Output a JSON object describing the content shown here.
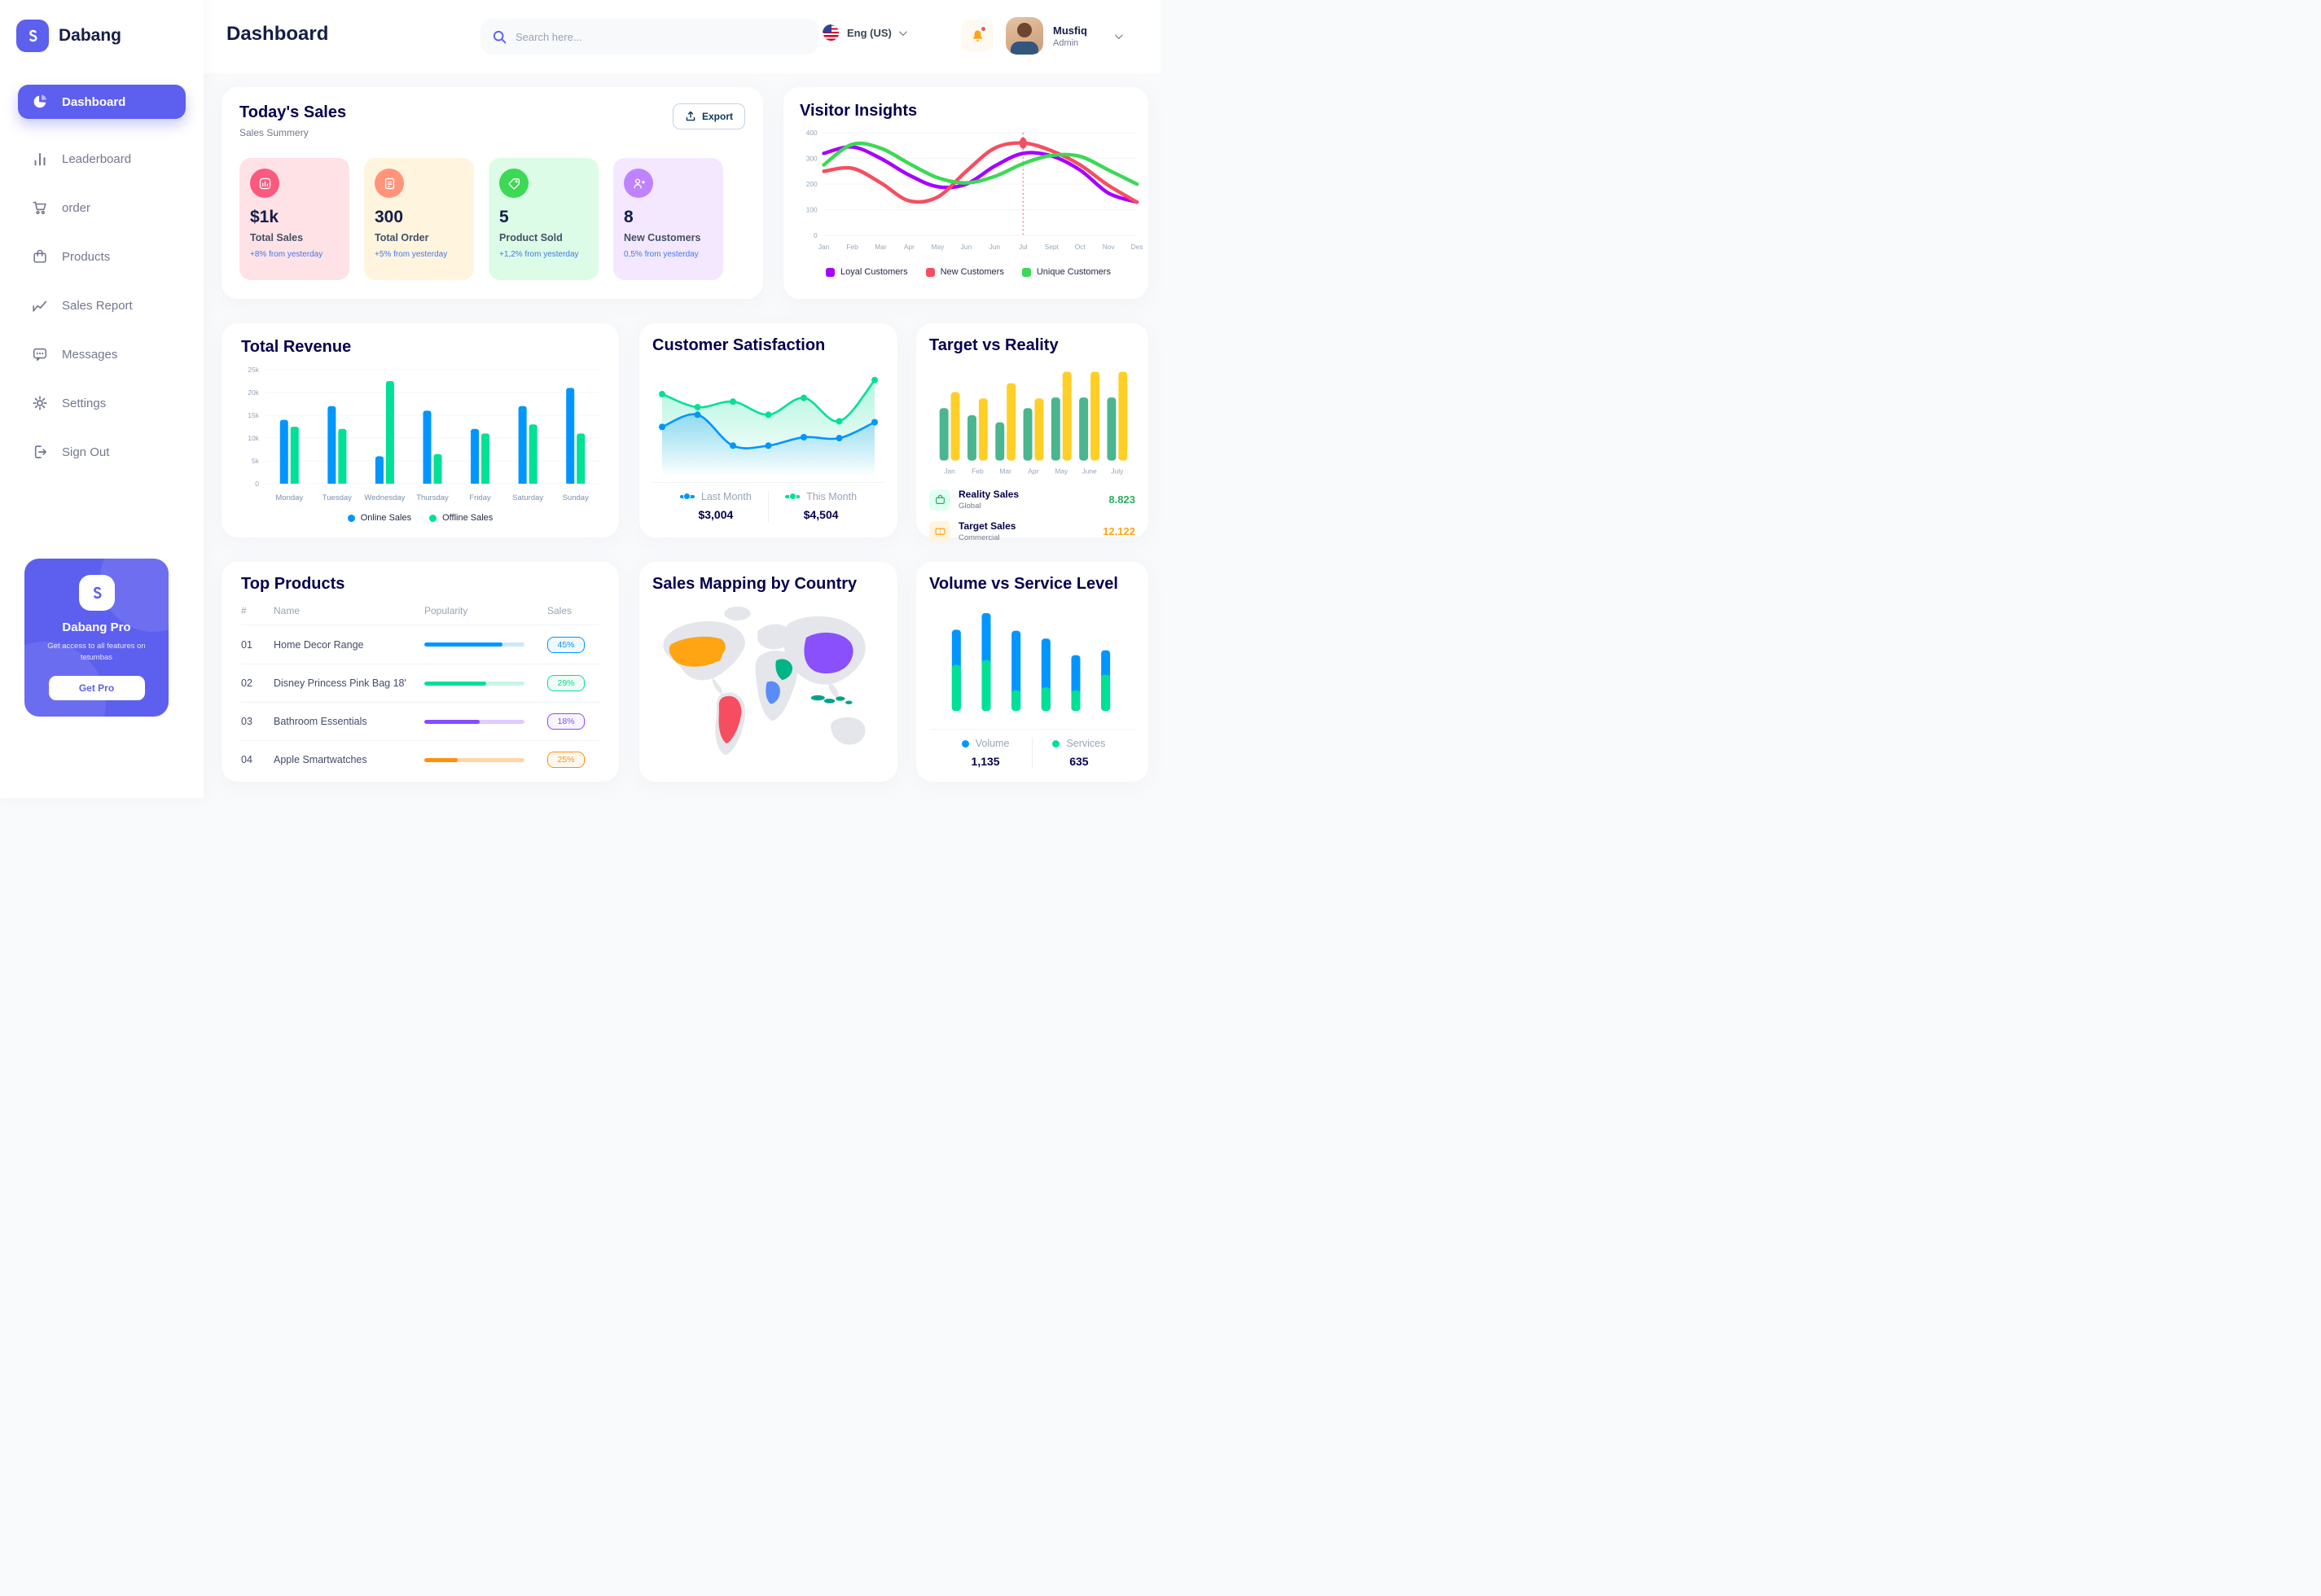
{
  "brand": {
    "name": "Dabang"
  },
  "colors": {
    "accent": "#5D5FEF",
    "navy": "#151D48",
    "muted": "#737791",
    "blue": "#0095FF",
    "green": "#00E096",
    "delta_blue": "#4079ED"
  },
  "sidebar": {
    "items": [
      {
        "label": "Dashboard",
        "icon": "pie-chart-icon",
        "active": true
      },
      {
        "label": "Leaderboard",
        "icon": "bar-chart-icon",
        "active": false
      },
      {
        "label": "order",
        "icon": "cart-icon",
        "active": false
      },
      {
        "label": "Products",
        "icon": "bag-icon",
        "active": false
      },
      {
        "label": "Sales Report",
        "icon": "line-chart-icon",
        "active": false
      },
      {
        "label": "Messages",
        "icon": "message-icon",
        "active": false
      },
      {
        "label": "Settings",
        "icon": "gear-icon",
        "active": false
      },
      {
        "label": "Sign Out",
        "icon": "sign-out-icon",
        "active": false
      }
    ],
    "pro_card": {
      "title": "Dabang Pro",
      "subtitle": "Get access to all features on tetumbas",
      "button_label": "Get Pro"
    }
  },
  "header": {
    "title": "Dashboard",
    "search_placeholder": "Search here...",
    "language": "Eng (US)",
    "user": {
      "name": "Musfiq",
      "role": "Admin"
    }
  },
  "today_sales": {
    "title": "Today's Sales",
    "subtitle": "Sales Summery",
    "export_label": "Export",
    "cards": [
      {
        "value": "$1k",
        "label": "Total Sales",
        "delta": "+8% from yesterday",
        "bg": "#FFE2E5",
        "icon_bg": "#FA5A7D",
        "icon": "chart-icon"
      },
      {
        "value": "300",
        "label": "Total Order",
        "delta": "+5% from yesterday",
        "bg": "#FFF4DE",
        "icon_bg": "#FF947A",
        "icon": "file-icon"
      },
      {
        "value": "5",
        "label": "Product Sold",
        "delta": "+1,2% from yesterday",
        "bg": "#DCFCE7",
        "icon_bg": "#3CD856",
        "icon": "tag-icon"
      },
      {
        "value": "8",
        "label": "New Customers",
        "delta": "0,5% from yesterday",
        "bg": "#F3E8FF",
        "icon_bg": "#BF83FF",
        "icon": "user-plus-icon"
      }
    ]
  },
  "top_products": {
    "title": "Top Products",
    "columns": [
      "#",
      "Name",
      "Popularity",
      "Sales"
    ],
    "rows": [
      {
        "num": "01",
        "name": "Home Decor Range",
        "popularity": 78,
        "sales": "45%",
        "color": "#0095FF",
        "track": "#CDE7FF",
        "badge_bg": "#F0F9FF"
      },
      {
        "num": "02",
        "name": "Disney Princess Pink Bag 18'",
        "popularity": 62,
        "sales": "29%",
        "color": "#00E096",
        "track": "#C8F5E3",
        "badge_bg": "#F0FDF6"
      },
      {
        "num": "03",
        "name": "Bathroom Essentials",
        "popularity": 55,
        "sales": "18%",
        "color": "#884DFF",
        "track": "#DECCFF",
        "badge_bg": "#F9F5FF"
      },
      {
        "num": "04",
        "name": "Apple Smartwatches",
        "popularity": 33,
        "sales": "25%",
        "color": "#FF8F0D",
        "track": "#FFD6A4",
        "badge_bg": "#FFF8EF"
      }
    ]
  },
  "sales_map": {
    "title": "Sales Mapping by Country",
    "regions": [
      {
        "name": "united-states",
        "color": "#FFA412"
      },
      {
        "name": "brazil",
        "color": "#F64E60"
      },
      {
        "name": "congo",
        "color": "#5A8CF8"
      },
      {
        "name": "saudi-arabia",
        "color": "#00B487"
      },
      {
        "name": "china",
        "color": "#8950FC"
      },
      {
        "name": "indonesia",
        "color": "#00A389"
      }
    ]
  },
  "chart_data": [
    {
      "id": "visitor_insights",
      "type": "line",
      "title": "Visitor Insights",
      "categories": [
        "Jan",
        "Feb",
        "Mar",
        "Apr",
        "May",
        "Jun",
        "Jun",
        "Jul",
        "Sept",
        "Oct",
        "Nov",
        "Des"
      ],
      "ylim": [
        0,
        400
      ],
      "yticks": [
        0,
        100,
        200,
        300,
        400
      ],
      "series": [
        {
          "name": "Loyal Customers",
          "color": "#A700FF",
          "values": [
            320,
            345,
            300,
            235,
            190,
            200,
            270,
            320,
            310,
            255,
            165,
            130
          ]
        },
        {
          "name": "New Customers",
          "color": "#F64E60",
          "values": [
            250,
            262,
            205,
            135,
            150,
            250,
            340,
            360,
            330,
            275,
            195,
            130
          ]
        },
        {
          "name": "Unique Customers",
          "color": "#3CD856",
          "values": [
            275,
            355,
            340,
            280,
            225,
            205,
            230,
            280,
            312,
            308,
            255,
            200
          ]
        }
      ],
      "marker": {
        "series": "New Customers",
        "index": 7,
        "value": 360
      },
      "legend_position": "bottom",
      "grid": true
    },
    {
      "id": "total_revenue",
      "type": "bar",
      "title": "Total Revenue",
      "categories": [
        "Monday",
        "Tuesday",
        "Wednesday",
        "Thursday",
        "Friday",
        "Saturday",
        "Sunday"
      ],
      "ylim": [
        0,
        25000
      ],
      "ytick_labels": [
        "0",
        "5k",
        "10k",
        "15k",
        "20k",
        "25k"
      ],
      "series": [
        {
          "name": "Online Sales",
          "color": "#0095FF",
          "values": [
            14000,
            17000,
            6000,
            16000,
            12000,
            17000,
            21000
          ]
        },
        {
          "name": "Offline Sales",
          "color": "#00E096",
          "values": [
            12500,
            12000,
            22500,
            6500,
            11000,
            13000,
            11000
          ]
        }
      ],
      "legend_position": "bottom",
      "grid": true
    },
    {
      "id": "customer_satisfaction",
      "type": "area",
      "title": "Customer Satisfaction",
      "ylim": [
        0,
        100
      ],
      "series": [
        {
          "name": "Last Month",
          "total": "$3,004",
          "color": "#0095FF",
          "values": [
            45,
            58,
            25,
            25,
            34,
            33,
            50
          ]
        },
        {
          "name": "This Month",
          "total": "$4,504",
          "color": "#00E096",
          "values": [
            80,
            66,
            72,
            58,
            76,
            51,
            95
          ]
        }
      ],
      "legend_position": "bottom",
      "grid": false
    },
    {
      "id": "target_vs_reality",
      "type": "bar",
      "title": "Target vs Reality",
      "categories": [
        "Jan",
        "Feb",
        "Mar",
        "Apr",
        "May",
        "June",
        "July"
      ],
      "ylim": [
        0,
        100
      ],
      "series": [
        {
          "name": "Reality Sales",
          "color": "#4AB58E",
          "values": [
            59,
            51,
            43,
            59,
            71,
            71,
            71
          ]
        },
        {
          "name": "Target Sales",
          "color": "#FFCF26",
          "values": [
            77,
            70,
            87,
            70,
            100,
            100,
            100
          ]
        }
      ],
      "legend": [
        {
          "label": "Reality Sales",
          "sublabel": "Global",
          "value": "8.823",
          "value_color": "#27AE60",
          "icon_bg": "#E2FFF3",
          "icon_color": "#27AE60",
          "icon": "bag-icon"
        },
        {
          "label": "Target Sales",
          "sublabel": "Commercial",
          "value": "12.122",
          "value_color": "#FFA412",
          "icon_bg": "#FFF4DE",
          "icon_color": "#FFA412",
          "icon": "ticket-icon"
        }
      ],
      "grid": false
    },
    {
      "id": "volume_vs_service",
      "type": "stacked-bar",
      "title": "Volume vs Service Level",
      "series": [
        {
          "name": "Volume",
          "total": "1,135",
          "color": "#0095FF",
          "values": [
            36,
            48,
            61,
            50,
            36,
            25
          ]
        },
        {
          "name": "Services",
          "total": "635",
          "color": "#00E096",
          "values": [
            47,
            52,
            21,
            24,
            21,
            37
          ]
        }
      ],
      "legend_position": "bottom",
      "grid": false
    }
  ]
}
